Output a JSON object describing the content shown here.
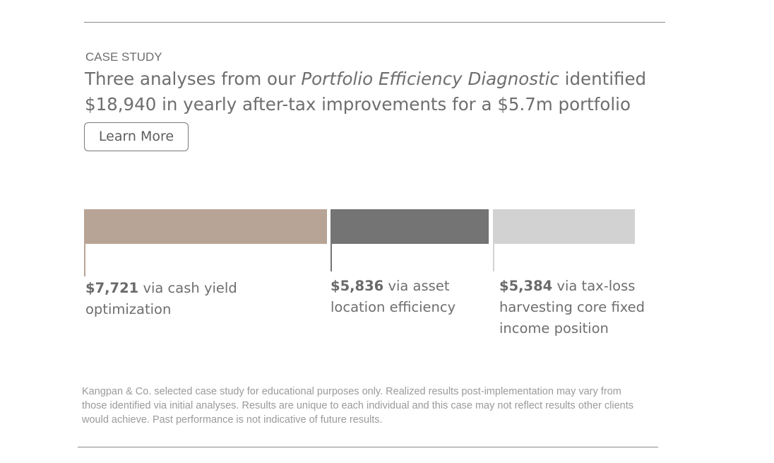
{
  "eyebrow": "CASE STUDY",
  "headline": {
    "part1": "Three analyses from our ",
    "emphasis": "Portfolio Efficiency Diagnostic",
    "part2": " identified $18,940 in yearly after-tax improvements for a $5.7m portfolio"
  },
  "cta": {
    "label": "Learn More"
  },
  "breakdown": [
    {
      "amount": "$7,721",
      "text": " via cash yield optimization",
      "value": 7721,
      "color": "#b8a496"
    },
    {
      "amount": "$5,836",
      "text": " via asset location efficiency",
      "value": 5836,
      "color": "#747474"
    },
    {
      "amount": "$5,384",
      "text": " via tax-loss harvesting core fixed income position",
      "value": 5384,
      "color": "#d2d2d2"
    }
  ],
  "disclaimer": "Kangpan & Co. selected case study for educational purposes only. Realized results post-implementation may vary from those identified via initial analyses. Results are unique to each individual and this case may not reflect results other clients would achieve. Past performance is not indicative of future results."
}
